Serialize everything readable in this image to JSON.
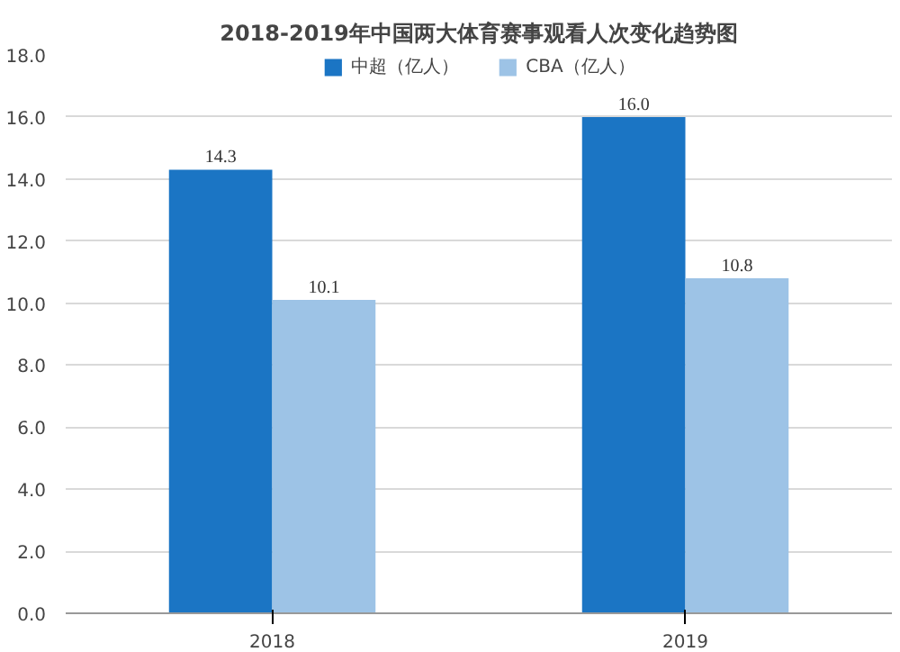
{
  "chart_data": {
    "type": "bar",
    "title": "2018-2019年中国两大体育赛事观看人次变化趋势图",
    "categories": [
      "2018",
      "2019"
    ],
    "series": [
      {
        "name": "中超（亿人）",
        "color": "#1b75c4",
        "values": [
          14.3,
          16.0
        ],
        "value_labels": [
          "14.3",
          "16.0"
        ]
      },
      {
        "name": "CBA（亿人）",
        "color": "#9dc3e6",
        "values": [
          10.1,
          10.8
        ],
        "value_labels": [
          "10.1",
          "10.8"
        ]
      }
    ],
    "ylim": [
      0,
      18
    ],
    "yticks": [
      {
        "value": 0,
        "label": "0.0"
      },
      {
        "value": 2,
        "label": "2.0"
      },
      {
        "value": 4,
        "label": "4.0"
      },
      {
        "value": 6,
        "label": "6.0"
      },
      {
        "value": 8,
        "label": "8.0"
      },
      {
        "value": 10,
        "label": "10.0"
      },
      {
        "value": 12,
        "label": "12.0"
      },
      {
        "value": 14,
        "label": "14.0"
      },
      {
        "value": 16,
        "label": "16.0"
      },
      {
        "value": 18,
        "label": "18.0"
      }
    ],
    "grid": "y",
    "legend": "top"
  }
}
